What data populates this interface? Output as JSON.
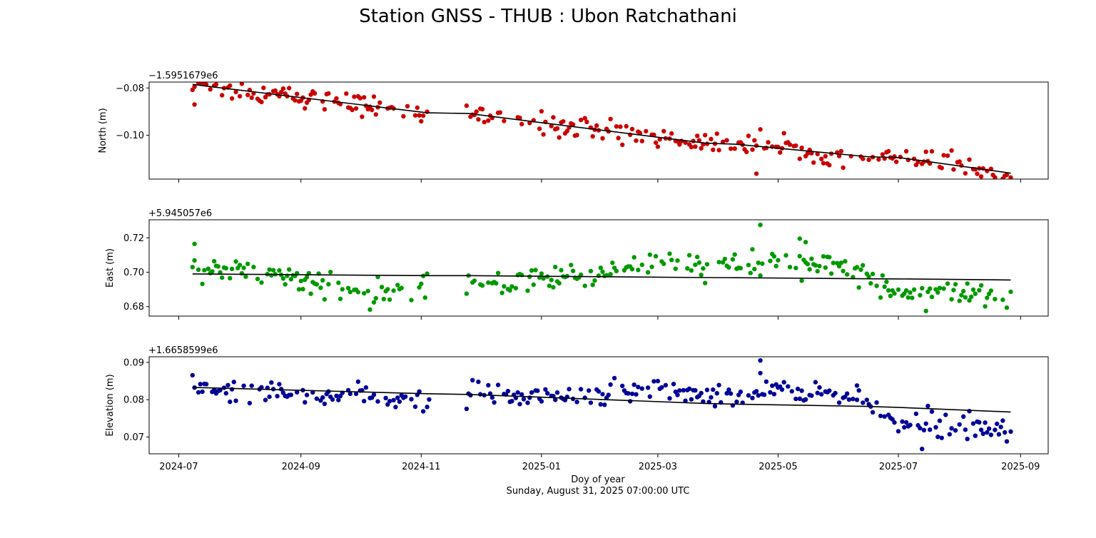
{
  "figure": {
    "title": "Station GNSS - THUB : Ubon Ratchathani",
    "xlabel": "Doy of year",
    "timestamp": "Sunday, August 31, 2025 07:00:00 UTC"
  },
  "chart_data": [
    {
      "type": "scatter",
      "name": "north-panel",
      "ylabel": "North (m)",
      "offset_label": "−1.5951679e6",
      "xlim": [
        "2024-06-16",
        "2025-09-15"
      ],
      "ylim": [
        -0.1185,
        -0.0775
      ],
      "yticks": [
        -0.08,
        -0.1
      ],
      "ytick_labels": [
        "−0.08",
        "−0.10"
      ],
      "xticks": [
        "2024-07-01",
        "2024-09-01",
        "2024-11-01",
        "2025-01-01",
        "2025-03-01",
        "2025-05-01",
        "2025-07-01",
        "2025-09-01"
      ],
      "xtick_labels": [
        "2024-07",
        "2024-09",
        "2024-11",
        "2025-01",
        "2025-03",
        "2025-05",
        "2025-07",
        "2025-09"
      ],
      "point_color": "#cc0000",
      "trend_color": "#000000",
      "date_range": [
        "2024-07-08",
        "2025-08-27"
      ],
      "gap": [
        "2024-11-05",
        "2024-11-24"
      ],
      "trend": {
        "x": [
          "2024-07-08",
          "2024-11-04",
          "2024-11-25",
          "2025-03-25",
          "2025-04-10",
          "2025-06-15",
          "2025-07-02",
          "2025-08-27"
        ],
        "y": [
          -0.0785,
          -0.0905,
          -0.0908,
          -0.1033,
          -0.1038,
          -0.109,
          -0.1095,
          -0.116
        ]
      },
      "scatter": {
        "noise": 0.0022,
        "outliers": [
          [
            "2025-04-20",
            -0.1162
          ],
          [
            "2025-04-22",
            -0.0975
          ],
          [
            "2024-07-09",
            -0.087
          ]
        ]
      }
    },
    {
      "type": "scatter",
      "name": "east-panel",
      "ylabel": "East (m)",
      "offset_label": "+5.945057e6",
      "xlim": [
        "2024-06-16",
        "2025-09-15"
      ],
      "ylim": [
        0.6745,
        0.7305
      ],
      "yticks": [
        0.68,
        0.7,
        0.72
      ],
      "ytick_labels": [
        "0.68",
        "0.70",
        "0.72"
      ],
      "xticks": [
        "2024-07-01",
        "2024-09-01",
        "2024-11-01",
        "2025-01-01",
        "2025-03-01",
        "2025-05-01",
        "2025-07-01",
        "2025-09-01"
      ],
      "xtick_labels": [
        "2024-07",
        "2024-09",
        "2024-11",
        "2025-01",
        "2025-03",
        "2025-05",
        "2025-07",
        "2025-09"
      ],
      "point_color": "#009900",
      "trend_color": "#000000",
      "date_range": [
        "2024-07-08",
        "2025-08-27"
      ],
      "gap": [
        "2024-11-05",
        "2024-11-24"
      ],
      "trend": {
        "x": [
          "2024-07-08",
          "2024-11-04",
          "2024-11-25",
          "2025-03-25",
          "2025-04-10",
          "2025-06-15",
          "2025-07-02",
          "2025-08-27"
        ],
        "y": [
          0.699,
          0.698,
          0.698,
          0.6969,
          0.6968,
          0.6962,
          0.6961,
          0.6955
        ]
      },
      "signal": {
        "x": [
          "2024-07-08",
          "2024-08-15",
          "2024-10-01",
          "2024-10-25",
          "2024-11-25",
          "2025-01-01",
          "2025-02-01",
          "2025-03-01",
          "2025-04-01",
          "2025-04-25",
          "2025-05-25",
          "2025-06-15",
          "2025-07-01",
          "2025-07-25",
          "2025-08-27"
        ],
        "y": [
          0.704,
          0.699,
          0.69,
          0.69,
          0.694,
          0.695,
          0.701,
          0.706,
          0.703,
          0.705,
          0.704,
          0.699,
          0.688,
          0.69,
          0.684
        ]
      },
      "scatter": {
        "noise": 0.0035,
        "outliers": [
          [
            "2025-04-22",
            0.7275
          ],
          [
            "2025-05-12",
            0.7195
          ],
          [
            "2025-05-15",
            0.7175
          ],
          [
            "2024-07-09",
            0.7165
          ],
          [
            "2025-07-15",
            0.6775
          ]
        ]
      }
    },
    {
      "type": "scatter",
      "name": "elevation-panel",
      "ylabel": "Elevation (m)",
      "offset_label": "+1.6658599e6",
      "xlim": [
        "2024-06-16",
        "2025-09-15"
      ],
      "ylim": [
        0.0655,
        0.0915
      ],
      "yticks": [
        0.07,
        0.08,
        0.09
      ],
      "ytick_labels": [
        "0.07",
        "0.08",
        "0.09"
      ],
      "xticks": [
        "2024-07-01",
        "2024-09-01",
        "2024-11-01",
        "2025-01-01",
        "2025-03-01",
        "2025-05-01",
        "2025-07-01",
        "2025-09-01"
      ],
      "xtick_labels": [
        "2024-07",
        "2024-09",
        "2024-11",
        "2025-01",
        "2025-03",
        "2025-05",
        "2025-07",
        "2025-09"
      ],
      "point_color": "#000099",
      "trend_color": "#000000",
      "date_range": [
        "2024-07-08",
        "2025-08-27"
      ],
      "gap": [
        "2024-11-05",
        "2024-11-24"
      ],
      "trend": {
        "x": [
          "2024-07-08",
          "2024-11-04",
          "2024-11-25",
          "2025-03-25",
          "2025-04-10",
          "2025-06-15",
          "2025-07-02",
          "2025-08-27"
        ],
        "y": [
          0.0833,
          0.0816,
          0.0814,
          0.079,
          0.0788,
          0.0782,
          0.0779,
          0.0767
        ]
      },
      "signal": {
        "x": [
          "2024-07-08",
          "2024-08-15",
          "2024-10-01",
          "2024-10-25",
          "2024-11-25",
          "2025-01-01",
          "2025-02-01",
          "2025-03-01",
          "2025-04-01",
          "2025-04-25",
          "2025-05-25",
          "2025-06-15",
          "2025-07-01",
          "2025-07-25",
          "2025-08-27"
        ],
        "y": [
          0.0835,
          0.082,
          0.0805,
          0.079,
          0.0812,
          0.08,
          0.0815,
          0.0825,
          0.0805,
          0.083,
          0.0815,
          0.079,
          0.0745,
          0.0745,
          0.072
        ]
      },
      "scatter": {
        "noise": 0.0016,
        "outliers": [
          [
            "2025-04-22",
            0.0905
          ],
          [
            "2025-07-13",
            0.0668
          ],
          [
            "2025-08-25",
            0.0688
          ],
          [
            "2025-06-10",
            0.0838
          ]
        ]
      }
    }
  ]
}
